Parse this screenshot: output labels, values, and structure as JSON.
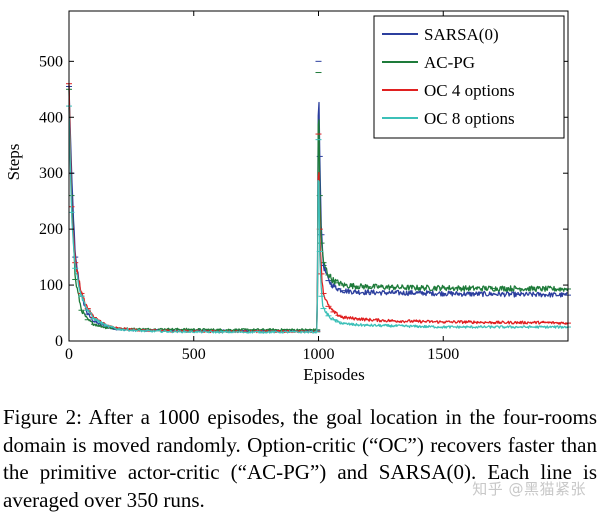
{
  "chart_data": {
    "type": "line",
    "xlabel": "Episodes",
    "ylabel": "Steps",
    "xlim": [
      0,
      2000
    ],
    "ylim": [
      0,
      590
    ],
    "xticks": [
      0,
      500,
      1000,
      1500
    ],
    "yticks": [
      0,
      100,
      200,
      300,
      400,
      500
    ],
    "grid": false,
    "legend_position": "top-right",
    "series": [
      {
        "name": "SARSA(0)",
        "color": "#2c3f9e",
        "x": [
          0,
          10,
          25,
          50,
          75,
          100,
          150,
          200,
          300,
          400,
          600,
          800,
          995,
          1000,
          1005,
          1012,
          1020,
          1040,
          1060,
          1080,
          1100,
          1150,
          1200,
          1300,
          1400,
          1500,
          1600,
          1700,
          1800,
          1900,
          2000
        ],
        "y": [
          455,
          300,
          150,
          80,
          48,
          35,
          25,
          21,
          19,
          19,
          18,
          18,
          18,
          500,
          330,
          190,
          135,
          108,
          98,
          93,
          90,
          88,
          87,
          86,
          86,
          85,
          84,
          84,
          83,
          83,
          82
        ]
      },
      {
        "name": "AC-PG",
        "color": "#1e7b3a",
        "x": [
          0,
          10,
          25,
          50,
          75,
          100,
          150,
          200,
          300,
          400,
          600,
          800,
          995,
          1000,
          1005,
          1012,
          1020,
          1040,
          1060,
          1080,
          1100,
          1150,
          1200,
          1300,
          1400,
          1500,
          1600,
          1700,
          1800,
          1900,
          2000
        ],
        "y": [
          450,
          260,
          110,
          55,
          38,
          30,
          24,
          22,
          21,
          21,
          20,
          20,
          20,
          480,
          260,
          175,
          140,
          118,
          108,
          104,
          100,
          98,
          97,
          96,
          95,
          95,
          94,
          94,
          94,
          93,
          93
        ]
      },
      {
        "name": "OC 4 options",
        "color": "#e02020",
        "x": [
          0,
          10,
          25,
          50,
          75,
          100,
          150,
          200,
          300,
          400,
          600,
          800,
          995,
          1000,
          1005,
          1012,
          1020,
          1040,
          1060,
          1080,
          1100,
          1150,
          1200,
          1300,
          1400,
          1500,
          1600,
          1700,
          1800,
          1900,
          2000
        ],
        "y": [
          460,
          240,
          140,
          85,
          58,
          42,
          28,
          22,
          19,
          18,
          17,
          17,
          17,
          370,
          200,
          120,
          85,
          62,
          52,
          46,
          42,
          40,
          38,
          36,
          35,
          34,
          34,
          33,
          33,
          33,
          32
        ]
      },
      {
        "name": "OC 8 options",
        "color": "#3cc0b8",
        "x": [
          0,
          10,
          25,
          50,
          75,
          100,
          150,
          200,
          300,
          400,
          600,
          800,
          995,
          1000,
          1005,
          1012,
          1020,
          1040,
          1060,
          1080,
          1100,
          1150,
          1200,
          1300,
          1400,
          1500,
          1600,
          1700,
          1800,
          1900,
          2000
        ],
        "y": [
          420,
          230,
          130,
          80,
          55,
          40,
          27,
          21,
          18,
          17,
          16,
          16,
          16,
          360,
          160,
          80,
          58,
          45,
          38,
          34,
          31,
          29,
          28,
          27,
          26,
          25,
          25,
          25,
          25,
          25,
          25
        ]
      }
    ]
  },
  "caption": "Figure 2: After a 1000 episodes, the goal location in the four-rooms domain is moved randomly. Option-critic (“OC”) recovers faster than the primitive actor-critic (“AC-PG”) and SARSA(0). Each line is averaged over 350 runs.",
  "watermark": "知乎 @黑猫紧张"
}
